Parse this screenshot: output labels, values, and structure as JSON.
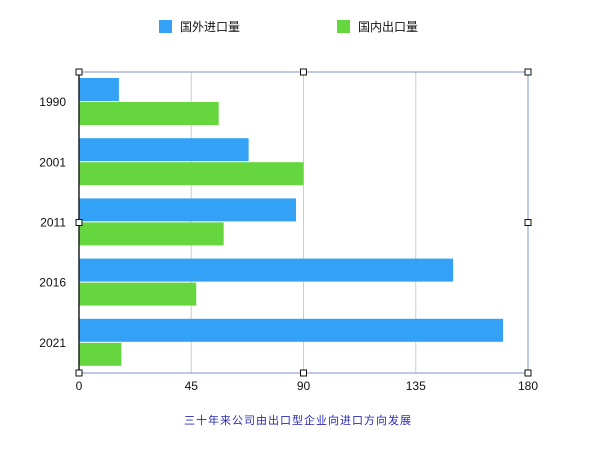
{
  "chart_data": {
    "type": "bar",
    "orientation": "horizontal",
    "categories": [
      "1990",
      "2001",
      "2011",
      "2016",
      "2021"
    ],
    "series": [
      {
        "name": "国外进口量",
        "color": "#33a2f6",
        "values": [
          16,
          68,
          87,
          150,
          170
        ]
      },
      {
        "name": "国内出口量",
        "color": "#66d63f",
        "values": [
          56,
          90,
          58,
          47,
          17
        ]
      }
    ],
    "xlim": [
      0,
      180
    ],
    "xticks": [
      "0",
      "45",
      "90",
      "135",
      "180"
    ],
    "grid": "vertical",
    "legend": "top",
    "caption": "三十年来公司由出口型企业向进口方向发展",
    "caption_color": "#2b2bb8"
  }
}
